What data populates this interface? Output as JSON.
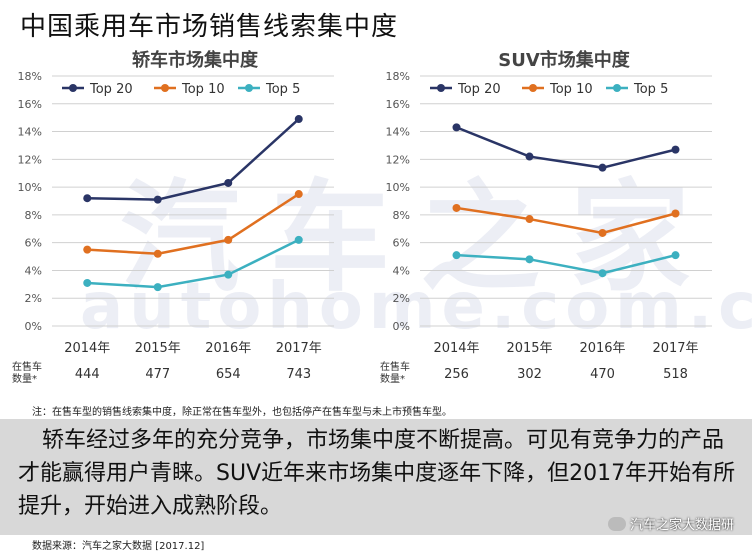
{
  "title": "中国乘用车市场销售线索集中度",
  "note": "注：在售车型的销售线索集中度，除正常在售车型外，也包括停产在售车型与未上市预售车型。",
  "conclusion": "轿车经过多年的充分竞争，市场集中度不断提高。可见有竞争力的产品才能赢得用户青睐。SUV近年来市场集中度逐年下降，但2017年开始有所提升，开始进入成熟阶段。",
  "source": "数据来源：汽车之家大数据 [2017.12]",
  "watermark": {
    "cn": "汽车之家",
    "en": "autohome.com.cn",
    "social": "汽车之家大数据研"
  },
  "colors": {
    "top20": "#2a3566",
    "top10": "#e07020",
    "top5": "#3cb0c0",
    "grid": "#d0d0d0",
    "axis": "#555555"
  },
  "chart_data": [
    {
      "type": "line",
      "title": "轿车市场集中度",
      "categories": [
        "2014年",
        "2015年",
        "2016年",
        "2017年"
      ],
      "series": [
        {
          "name": "Top 20",
          "values": [
            9.2,
            9.1,
            10.3,
            14.9
          ]
        },
        {
          "name": "Top 10",
          "values": [
            5.5,
            5.2,
            6.2,
            9.5
          ]
        },
        {
          "name": "Top 5",
          "values": [
            3.1,
            2.8,
            3.7,
            6.2
          ]
        }
      ],
      "ylim": [
        0,
        18
      ],
      "yticks": [
        "0%",
        "2%",
        "4%",
        "6%",
        "8%",
        "10%",
        "12%",
        "14%",
        "16%",
        "18%"
      ],
      "count_label": "在售车数量*",
      "counts": [
        "444",
        "477",
        "654",
        "743"
      ],
      "legend": "top-left"
    },
    {
      "type": "line",
      "title": "SUV市场集中度",
      "categories": [
        "2014年",
        "2015年",
        "2016年",
        "2017年"
      ],
      "series": [
        {
          "name": "Top 20",
          "values": [
            14.3,
            12.2,
            11.4,
            12.7
          ]
        },
        {
          "name": "Top 10",
          "values": [
            8.5,
            7.7,
            6.7,
            8.1
          ]
        },
        {
          "name": "Top 5",
          "values": [
            5.1,
            4.8,
            3.8,
            5.1
          ]
        }
      ],
      "ylim": [
        0,
        18
      ],
      "yticks": [
        "0%",
        "2%",
        "4%",
        "6%",
        "8%",
        "10%",
        "12%",
        "14%",
        "16%",
        "18%"
      ],
      "count_label": "在售车数量*",
      "counts": [
        "256",
        "302",
        "470",
        "518"
      ],
      "legend": "top-left"
    }
  ]
}
